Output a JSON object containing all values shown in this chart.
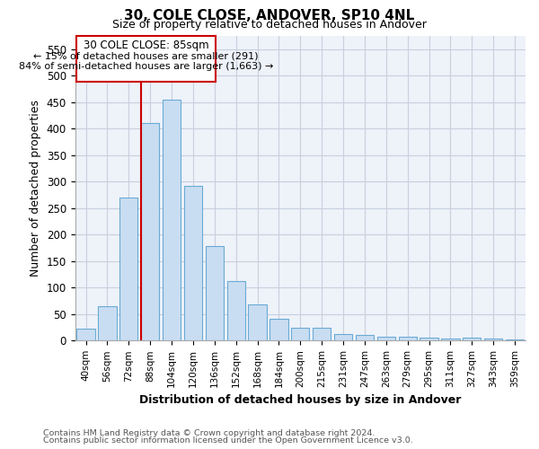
{
  "title": "30, COLE CLOSE, ANDOVER, SP10 4NL",
  "subtitle": "Size of property relative to detached houses in Andover",
  "xlabel": "Distribution of detached houses by size in Andover",
  "ylabel": "Number of detached properties",
  "categories": [
    "40sqm",
    "56sqm",
    "72sqm",
    "88sqm",
    "104sqm",
    "120sqm",
    "136sqm",
    "152sqm",
    "168sqm",
    "184sqm",
    "200sqm",
    "215sqm",
    "231sqm",
    "247sqm",
    "263sqm",
    "279sqm",
    "295sqm",
    "311sqm",
    "327sqm",
    "343sqm",
    "359sqm"
  ],
  "values": [
    22,
    65,
    270,
    410,
    455,
    292,
    178,
    112,
    68,
    42,
    24,
    24,
    13,
    10,
    7,
    7,
    5,
    4,
    5,
    4,
    3
  ],
  "bar_color": "#c9ddf2",
  "bar_edge_color": "#6aaad4",
  "ylim": [
    0,
    575
  ],
  "yticks": [
    0,
    50,
    100,
    150,
    200,
    250,
    300,
    350,
    400,
    450,
    500,
    550
  ],
  "grid_color": "#c8d0de",
  "background_color": "#eef2f9",
  "marker_line_color": "#cc0000",
  "annotation_title": "30 COLE CLOSE: 85sqm",
  "annotation_line1": "← 15% of detached houses are smaller (291)",
  "annotation_line2": "84% of semi-detached houses are larger (1,663) →",
  "footnote1": "Contains HM Land Registry data © Crown copyright and database right 2024.",
  "footnote2": "Contains public sector information licensed under the Open Government Licence v3.0."
}
